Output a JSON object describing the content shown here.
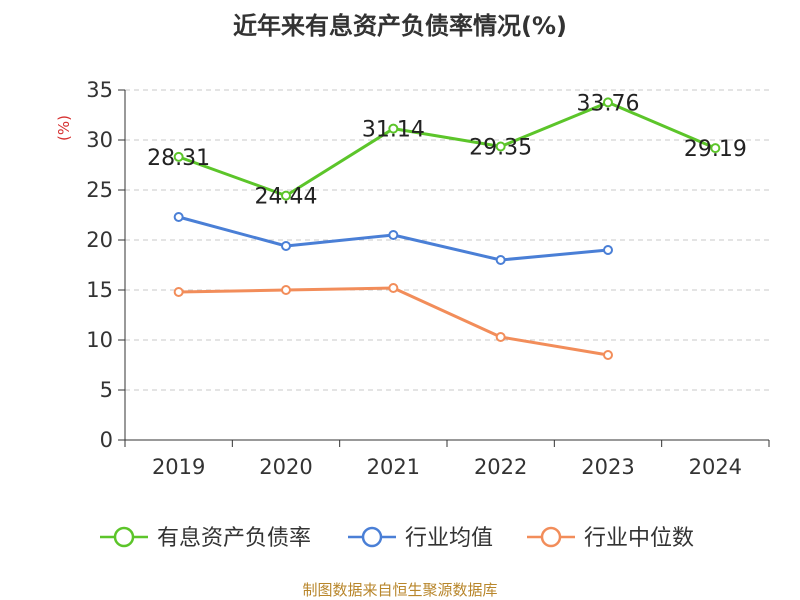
{
  "chart_data": {
    "type": "line",
    "title": "近年来有息资产负债率情况(%)",
    "ylabel": "(%)",
    "xlabel": "",
    "categories": [
      "2019",
      "2020",
      "2021",
      "2022",
      "2023",
      "2024"
    ],
    "ylim": [
      0,
      35
    ],
    "yticks": [
      "0",
      "5",
      "10",
      "15",
      "20",
      "25",
      "30",
      "35"
    ],
    "grid": true,
    "legend_position": "bottom",
    "series": [
      {
        "name": "有息资产负债率",
        "color": "#5cc52a",
        "values": [
          28.31,
          24.44,
          31.14,
          29.35,
          33.76,
          29.19
        ],
        "labels": [
          "28.31",
          "24.44",
          "31.14",
          "29.35",
          "33.76",
          "29.19"
        ]
      },
      {
        "name": "行业均值",
        "color": "#4a7fd6",
        "values": [
          22.3,
          19.4,
          20.5,
          18.0,
          19.0,
          null
        ]
      },
      {
        "name": "行业中位数",
        "color": "#f28d5a",
        "values": [
          14.8,
          15.0,
          15.2,
          10.3,
          8.5,
          null
        ]
      }
    ],
    "source": "制图数据来自恒生聚源数据库"
  }
}
